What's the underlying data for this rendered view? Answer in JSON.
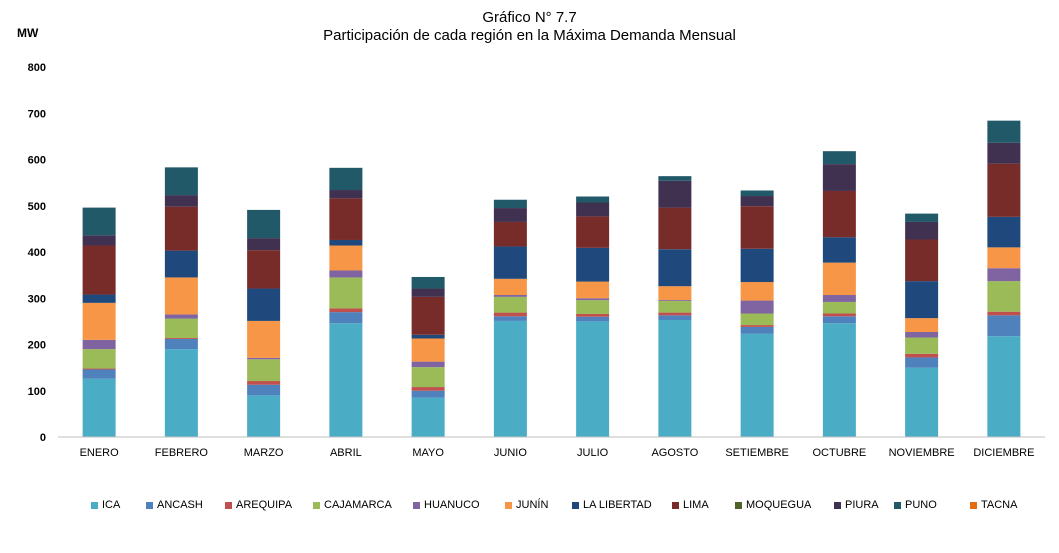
{
  "chart_data": {
    "type": "bar",
    "stacked": true,
    "title": "Gráfico N° 7.7",
    "subtitle": "Participación de cada región en la Máxima Demanda Mensual",
    "ylabel": "MW",
    "ylim": [
      0,
      800
    ],
    "yticks": [
      0,
      100,
      200,
      300,
      400,
      500,
      600,
      700,
      800
    ],
    "grid": false,
    "legend_position": "bottom",
    "categories": [
      "ENERO",
      "FEBRERO",
      "MARZO",
      "ABRIL",
      "MAYO",
      "JUNIO",
      "JULIO",
      "AGOSTO",
      "SETIEMBRE",
      "OCTUBRE",
      "NOVIEMBRE",
      "DICIEMBRE"
    ],
    "series": [
      {
        "name": "ICA",
        "color": "#4BACC6",
        "values": [
          126,
          190,
          90,
          246,
          85,
          251,
          250,
          253,
          223,
          246,
          150,
          218
        ]
      },
      {
        "name": "ANCASH",
        "color": "#4F81BD",
        "values": [
          20,
          22,
          23,
          24,
          15,
          10,
          10,
          10,
          15,
          15,
          22,
          45
        ]
      },
      {
        "name": "AREQUIPA",
        "color": "#C0504D",
        "values": [
          2,
          2,
          8,
          8,
          8,
          8,
          6,
          6,
          4,
          6,
          8,
          8
        ]
      },
      {
        "name": "CAJAMARCA",
        "color": "#9BBB59",
        "values": [
          42,
          42,
          47,
          67,
          43,
          34,
          30,
          25,
          25,
          25,
          35,
          66
        ]
      },
      {
        "name": "HUANUCO",
        "color": "#8064A2",
        "values": [
          20,
          9,
          3,
          15,
          12,
          4,
          4,
          2,
          28,
          15,
          12,
          28
        ]
      },
      {
        "name": "JUNÍN",
        "color": "#F79646",
        "values": [
          80,
          80,
          80,
          54,
          50,
          35,
          36,
          30,
          40,
          70,
          30,
          45
        ]
      },
      {
        "name": "LA LIBERTAD",
        "color": "#1F497D",
        "values": [
          18,
          58,
          70,
          12,
          8,
          70,
          73,
          80,
          72,
          55,
          80,
          66
        ]
      },
      {
        "name": "LIMA",
        "color": "#772C2A",
        "values": [
          106,
          95,
          83,
          90,
          82,
          53,
          68,
          90,
          92,
          100,
          90,
          115
        ]
      },
      {
        "name": "MOQUEGUA",
        "color": "#4F6228",
        "values": [
          0,
          0,
          0,
          0,
          0,
          0,
          0,
          0,
          0,
          0,
          0,
          0
        ]
      },
      {
        "name": "PIURA",
        "color": "#403151",
        "values": [
          22,
          25,
          26,
          18,
          18,
          30,
          30,
          58,
          22,
          58,
          38,
          45
        ]
      },
      {
        "name": "PUNO",
        "color": "#215968",
        "values": [
          60,
          60,
          61,
          48,
          25,
          18,
          13,
          10,
          12,
          28,
          18,
          48
        ]
      },
      {
        "name": "TACNA",
        "color": "#E46C0A",
        "values": [
          0,
          0,
          0,
          0,
          0,
          0,
          0,
          0,
          0,
          0,
          0,
          0
        ]
      }
    ]
  }
}
